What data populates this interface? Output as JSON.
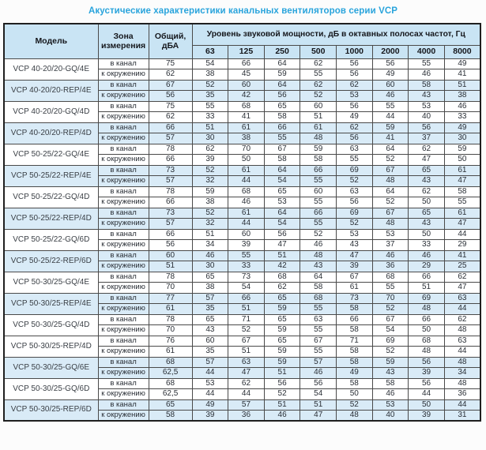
{
  "title": "Акустические характеристики канальных вентиляторов серии VCP",
  "colors": {
    "title": "#29a4dc",
    "header_bg": "#c9e4f4",
    "row_highlight_bg": "#d9ebf7",
    "border": "#4a4a4a",
    "text": "#2a2f36"
  },
  "table": {
    "headers": {
      "model": "Модель",
      "zone": "Зона измерения",
      "total": "Общий, дБА",
      "spl_group": "Уровень звуковой мощности, дБ в октавных полосах частот, Гц",
      "frequencies": [
        "63",
        "125",
        "250",
        "500",
        "1000",
        "2000",
        "4000",
        "8000"
      ]
    },
    "zone_labels": {
      "duct": "в канал",
      "ambient": "к окружению"
    },
    "rows": [
      {
        "model": "VCP 40-20/20-GQ/4E",
        "highlighted": false,
        "duct": {
          "total": "75",
          "bands": [
            54,
            66,
            64,
            62,
            56,
            56,
            55,
            49
          ]
        },
        "ambient": {
          "total": "62",
          "bands": [
            38,
            45,
            59,
            55,
            56,
            49,
            46,
            41
          ]
        }
      },
      {
        "model": "VCP 40-20/20-REP/4E",
        "highlighted": true,
        "duct": {
          "total": "67",
          "bands": [
            52,
            60,
            64,
            62,
            62,
            60,
            58,
            51
          ]
        },
        "ambient": {
          "total": "56",
          "bands": [
            35,
            42,
            56,
            52,
            53,
            46,
            43,
            38
          ]
        }
      },
      {
        "model": "VCP 40-20/20-GQ/4D",
        "highlighted": false,
        "duct": {
          "total": "75",
          "bands": [
            55,
            68,
            65,
            60,
            56,
            55,
            53,
            46
          ]
        },
        "ambient": {
          "total": "62",
          "bands": [
            33,
            41,
            58,
            51,
            49,
            44,
            40,
            33
          ]
        }
      },
      {
        "model": "VCP 40-20/20-REP/4D",
        "highlighted": true,
        "duct": {
          "total": "66",
          "bands": [
            51,
            61,
            66,
            61,
            62,
            59,
            56,
            49
          ]
        },
        "ambient": {
          "total": "57",
          "bands": [
            30,
            38,
            55,
            48,
            56,
            41,
            37,
            30
          ]
        }
      },
      {
        "model": "VCP 50-25/22-GQ/4E",
        "highlighted": false,
        "duct": {
          "total": "78",
          "bands": [
            62,
            70,
            67,
            59,
            63,
            64,
            62,
            59
          ]
        },
        "ambient": {
          "total": "66",
          "bands": [
            39,
            50,
            58,
            58,
            55,
            52,
            47,
            50
          ]
        }
      },
      {
        "model": "VCP 50-25/22-REP/4E",
        "highlighted": true,
        "duct": {
          "total": "73",
          "bands": [
            52,
            61,
            64,
            66,
            69,
            67,
            65,
            61
          ]
        },
        "ambient": {
          "total": "57",
          "bands": [
            32,
            44,
            54,
            55,
            52,
            48,
            43,
            47
          ]
        }
      },
      {
        "model": "VCP 50-25/22-GQ/4D",
        "highlighted": false,
        "duct": {
          "total": "78",
          "bands": [
            59,
            68,
            65,
            60,
            63,
            64,
            62,
            58
          ]
        },
        "ambient": {
          "total": "66",
          "bands": [
            38,
            46,
            53,
            55,
            56,
            52,
            50,
            55
          ]
        }
      },
      {
        "model": "VCP 50-25/22-REP/4D",
        "highlighted": true,
        "duct": {
          "total": "73",
          "bands": [
            52,
            61,
            64,
            66,
            69,
            67,
            65,
            61
          ]
        },
        "ambient": {
          "total": "57",
          "bands": [
            32,
            44,
            54,
            55,
            52,
            48,
            43,
            47
          ]
        }
      },
      {
        "model": "VCP 50-25/22-GQ/6D",
        "highlighted": false,
        "duct": {
          "total": "66",
          "bands": [
            51,
            60,
            56,
            52,
            53,
            53,
            50,
            44
          ]
        },
        "ambient": {
          "total": "56",
          "bands": [
            34,
            39,
            47,
            46,
            43,
            37,
            33,
            29
          ]
        }
      },
      {
        "model": "VCP 50-25/22-REP/6D",
        "highlighted": true,
        "duct": {
          "total": "60",
          "bands": [
            46,
            55,
            51,
            48,
            47,
            46,
            46,
            41
          ]
        },
        "ambient": {
          "total": "51",
          "bands": [
            30,
            33,
            42,
            43,
            39,
            36,
            29,
            25
          ]
        }
      },
      {
        "model": "VCP 50-30/25-GQ/4E",
        "highlighted": false,
        "duct": {
          "total": "78",
          "bands": [
            65,
            73,
            68,
            64,
            67,
            68,
            66,
            62
          ]
        },
        "ambient": {
          "total": "70",
          "bands": [
            38,
            54,
            62,
            58,
            61,
            55,
            51,
            47
          ]
        }
      },
      {
        "model": "VCP 50-30/25-REP/4E",
        "highlighted": true,
        "duct": {
          "total": "77",
          "bands": [
            57,
            66,
            65,
            68,
            73,
            70,
            69,
            63
          ]
        },
        "ambient": {
          "total": "61",
          "bands": [
            35,
            51,
            59,
            55,
            58,
            52,
            48,
            44
          ]
        }
      },
      {
        "model": "VCP 50-30/25-GQ/4D",
        "highlighted": false,
        "duct": {
          "total": "78",
          "bands": [
            65,
            71,
            65,
            63,
            66,
            67,
            66,
            62
          ]
        },
        "ambient": {
          "total": "70",
          "bands": [
            43,
            52,
            59,
            55,
            58,
            54,
            50,
            48
          ]
        }
      },
      {
        "model": "VCP 50-30/25-REP/4D",
        "highlighted": false,
        "duct": {
          "total": "76",
          "bands": [
            60,
            67,
            65,
            67,
            71,
            69,
            68,
            63
          ]
        },
        "ambient": {
          "total": "61",
          "bands": [
            35,
            51,
            59,
            55,
            58,
            52,
            48,
            44
          ]
        }
      },
      {
        "model": "VCP 50-30/25-GQ/6E",
        "highlighted": true,
        "duct": {
          "total": "68",
          "bands": [
            57,
            63,
            59,
            57,
            58,
            59,
            56,
            48
          ]
        },
        "ambient": {
          "total": "62,5",
          "bands": [
            44,
            47,
            51,
            46,
            49,
            43,
            39,
            34
          ]
        }
      },
      {
        "model": "VCP 50-30/25-GQ/6D",
        "highlighted": false,
        "duct": {
          "total": "68",
          "bands": [
            53,
            62,
            56,
            56,
            58,
            58,
            56,
            48
          ]
        },
        "ambient": {
          "total": "62,5",
          "bands": [
            44,
            44,
            52,
            54,
            50,
            46,
            44,
            36
          ]
        }
      },
      {
        "model": "VCP 50-30/25-REP/6D",
        "highlighted": true,
        "duct": {
          "total": "65",
          "bands": [
            49,
            57,
            51,
            51,
            52,
            53,
            50,
            44
          ]
        },
        "ambient": {
          "total": "58",
          "bands": [
            39,
            36,
            46,
            47,
            48,
            40,
            39,
            31
          ]
        }
      }
    ]
  }
}
